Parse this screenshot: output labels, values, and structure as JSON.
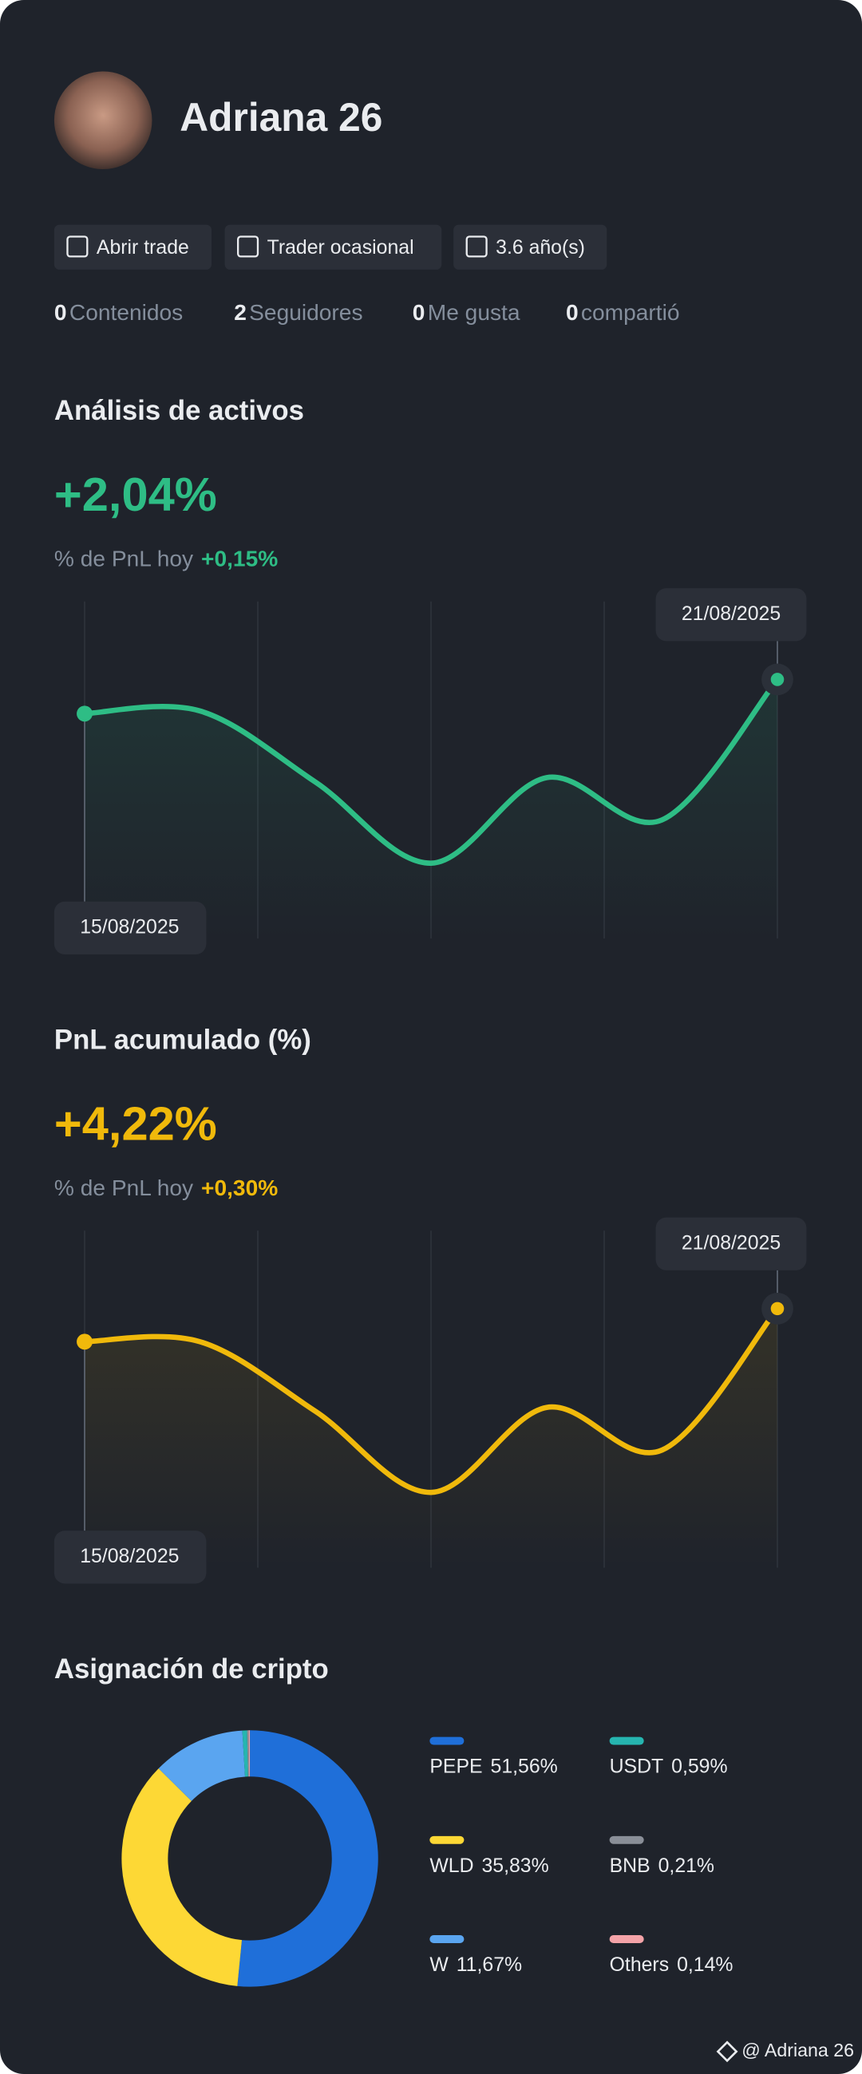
{
  "profile": {
    "name": "Adriana 26",
    "tags": [
      "Abrir trade",
      "Trader ocasional",
      "3.6 año(s)"
    ],
    "stats": [
      {
        "value": 0,
        "label": "Contenidos"
      },
      {
        "value": 2,
        "label": "Seguidores"
      },
      {
        "value": 0,
        "label": "Me gusta"
      },
      {
        "value": 0,
        "label": "compartió"
      }
    ]
  },
  "chart_data": [
    {
      "type": "line",
      "title": "Análisis de activos",
      "headline": "+2,04%",
      "subtitle": "% de PnL hoy",
      "change": "+0,15%",
      "x": [
        "15/08/2025",
        null,
        null,
        null,
        null,
        null,
        "21/08/2025"
      ],
      "series": [
        {
          "color": "#2ebd85",
          "values": [
            1.66,
            1.69,
            0.9,
            0,
            0.95,
            0.48,
            2.04
          ]
        }
      ]
    },
    {
      "type": "line",
      "title": "PnL acumulado (%)",
      "headline": "+4,22%",
      "subtitle": "% de PnL hoy",
      "change": "+0,30%",
      "x": [
        "15/08/2025",
        null,
        null,
        null,
        null,
        null,
        "21/08/2025"
      ],
      "series": [
        {
          "color": "#f0b90b",
          "values": [
            3.46,
            3.46,
            1.86,
            0,
            1.95,
            0.97,
            4.22
          ]
        }
      ]
    },
    {
      "type": "pie",
      "title": "Asignación de cripto",
      "categories": [
        "PEPE",
        "WLD",
        "W",
        "USDT",
        "BNB",
        "Others"
      ],
      "values": [
        51.56,
        35.83,
        11.67,
        0.59,
        0.21,
        0.14
      ],
      "value_labels": [
        "51,56%",
        "35,83%",
        "11,67%",
        "0,59%",
        "0,21%",
        "0,14%"
      ],
      "colors": [
        "#1f6fd9",
        "#fdd835",
        "#5aa5f0",
        "#26b5b0",
        "#8a8f98",
        "#f4a3a8"
      ]
    }
  ],
  "footer": "@ Adriana 26"
}
